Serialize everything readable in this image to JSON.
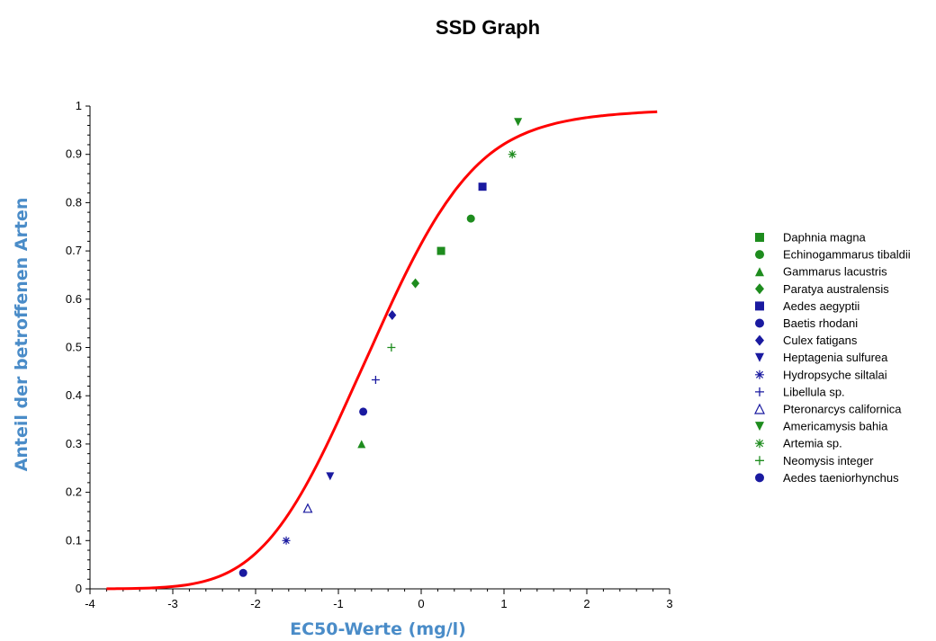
{
  "chart_data": {
    "type": "scatter",
    "title": "SSD Graph",
    "xlabel": "EC50-Werte (mg/l)",
    "ylabel": "Anteil der betroffenen Arten",
    "xlim": [
      -4,
      3
    ],
    "ylim": [
      0,
      1
    ],
    "xticks": [
      "-4",
      "-3",
      "-2",
      "-1",
      "0",
      "1",
      "2",
      "3"
    ],
    "yticks": [
      "0",
      "0.1",
      "0.2",
      "0.3",
      "0.4",
      "0.5",
      "0.6",
      "0.7",
      "0.8",
      "0.9",
      "1"
    ],
    "grid": false,
    "legend_position": "right",
    "fit_curve": {
      "type": "line",
      "color": "#ff0000",
      "x": [
        -3.8,
        -3.6,
        -3.4,
        -3.2,
        -3.0,
        -2.8,
        -2.6,
        -2.4,
        -2.2,
        -2.0,
        -1.8,
        -1.6,
        -1.4,
        -1.2,
        -1.0,
        -0.8,
        -0.6,
        -0.4,
        -0.2,
        0.0,
        0.2,
        0.4,
        0.6,
        0.8,
        1.0,
        1.2,
        1.4,
        1.6,
        1.8,
        2.0,
        2.2,
        2.4,
        2.6,
        2.85
      ],
      "y": [
        0.0002,
        0.0005,
        0.0011,
        0.0024,
        0.0048,
        0.0092,
        0.0166,
        0.0287,
        0.047,
        0.0735,
        0.1094,
        0.1556,
        0.2119,
        0.2771,
        0.349,
        0.4246,
        0.5,
        0.5762,
        0.6486,
        0.7149,
        0.7735,
        0.8234,
        0.8643,
        0.8966,
        0.9212,
        0.9394,
        0.9531,
        0.9631,
        0.9706,
        0.9761,
        0.9802,
        0.9834,
        0.9859,
        0.9884
      ]
    },
    "series": [
      {
        "name": "Daphnia magna",
        "marker": "square",
        "color": "#1e8c1e",
        "x": [
          0.24
        ],
        "y": [
          0.7
        ]
      },
      {
        "name": "Echinogammarus tibaldii",
        "marker": "circle",
        "color": "#1e8c1e",
        "x": [
          0.6
        ],
        "y": [
          0.767
        ]
      },
      {
        "name": "Gammarus lacustris",
        "marker": "triangle-up",
        "color": "#1e8c1e",
        "x": [
          -0.72
        ],
        "y": [
          0.3
        ]
      },
      {
        "name": "Paratya australensis",
        "marker": "diamond",
        "color": "#1e8c1e",
        "x": [
          -0.07
        ],
        "y": [
          0.633
        ]
      },
      {
        "name": "Aedes aegyptii",
        "marker": "square",
        "color": "#1a1aa0",
        "x": [
          0.74
        ],
        "y": [
          0.833
        ]
      },
      {
        "name": "Baetis rhodani",
        "marker": "circle",
        "color": "#1a1aa0",
        "x": [
          -0.7
        ],
        "y": [
          0.367
        ]
      },
      {
        "name": "Culex fatigans",
        "marker": "diamond",
        "color": "#1a1aa0",
        "x": [
          -0.35
        ],
        "y": [
          0.567
        ]
      },
      {
        "name": "Heptagenia sulfurea",
        "marker": "triangle-down",
        "color": "#1a1aa0",
        "x": [
          -1.1
        ],
        "y": [
          0.233
        ]
      },
      {
        "name": "Hydropsyche siltalai",
        "marker": "asterisk",
        "color": "#1a1aa0",
        "x": [
          -1.63
        ],
        "y": [
          0.1
        ]
      },
      {
        "name": "Libellula sp.",
        "marker": "plus",
        "color": "#1a1aa0",
        "x": [
          -0.55
        ],
        "y": [
          0.433
        ]
      },
      {
        "name": "Pteronarcys californica",
        "marker": "triangle-open",
        "color": "#1a1aa0",
        "x": [
          -1.37
        ],
        "y": [
          0.167
        ]
      },
      {
        "name": "Americamysis bahia",
        "marker": "triangle-down",
        "color": "#1e8c1e",
        "x": [
          1.17
        ],
        "y": [
          0.967
        ]
      },
      {
        "name": "Artemia sp.",
        "marker": "asterisk",
        "color": "#1e8c1e",
        "x": [
          1.1
        ],
        "y": [
          0.9
        ]
      },
      {
        "name": "Neomysis integer",
        "marker": "plus",
        "color": "#1e8c1e",
        "x": [
          -0.36
        ],
        "y": [
          0.5
        ]
      },
      {
        "name": "Aedes taeniorhynchus",
        "marker": "circle",
        "color": "#1a1aa0",
        "x": [
          -2.15
        ],
        "y": [
          0.033
        ]
      }
    ]
  }
}
